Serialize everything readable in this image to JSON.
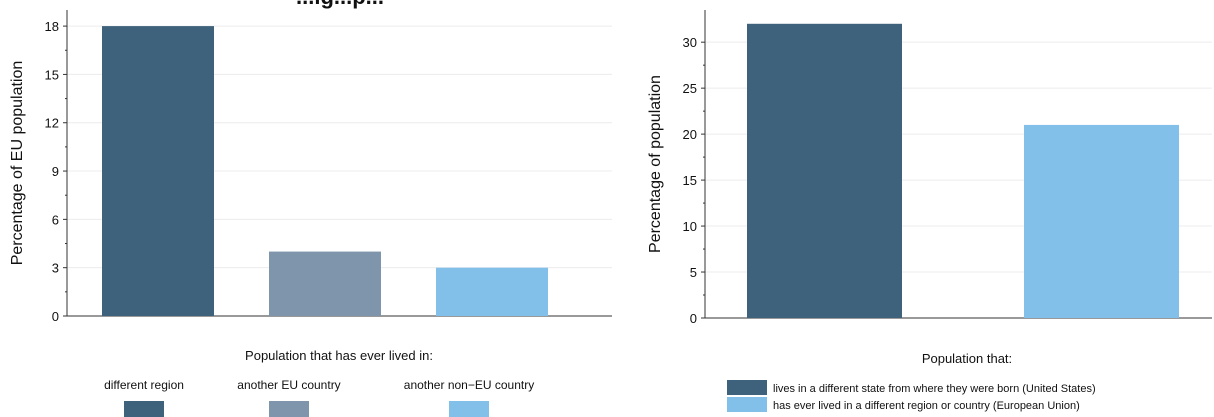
{
  "chart_data": [
    {
      "type": "bar",
      "title": "...ig...p...",
      "ylabel": "Percentage of EU population",
      "ylim": [
        0,
        19
      ],
      "yticks": [
        0,
        3,
        6,
        9,
        12,
        15,
        18
      ],
      "grid": true,
      "legend_title": "Population that has ever lived in:",
      "legend_position": "bottom",
      "categories": [
        "different region",
        "another EU country",
        "another non−EU country"
      ],
      "values": [
        18,
        4,
        3
      ],
      "colors": [
        "#3f627c",
        "#7f95ab",
        "#82bfe9"
      ]
    },
    {
      "type": "bar",
      "ylabel": "Percentage of population",
      "ylim": [
        0,
        33.5
      ],
      "yticks": [
        0,
        5,
        10,
        15,
        20,
        25,
        30
      ],
      "grid": true,
      "legend_title": "Population that:",
      "legend_position": "bottom",
      "categories": [
        "lives in a different state from where they were born (United States)",
        "has ever lived in a different region or country (European Union)"
      ],
      "values": [
        32,
        21
      ],
      "colors": [
        "#3f627c",
        "#82bfe9"
      ]
    }
  ]
}
